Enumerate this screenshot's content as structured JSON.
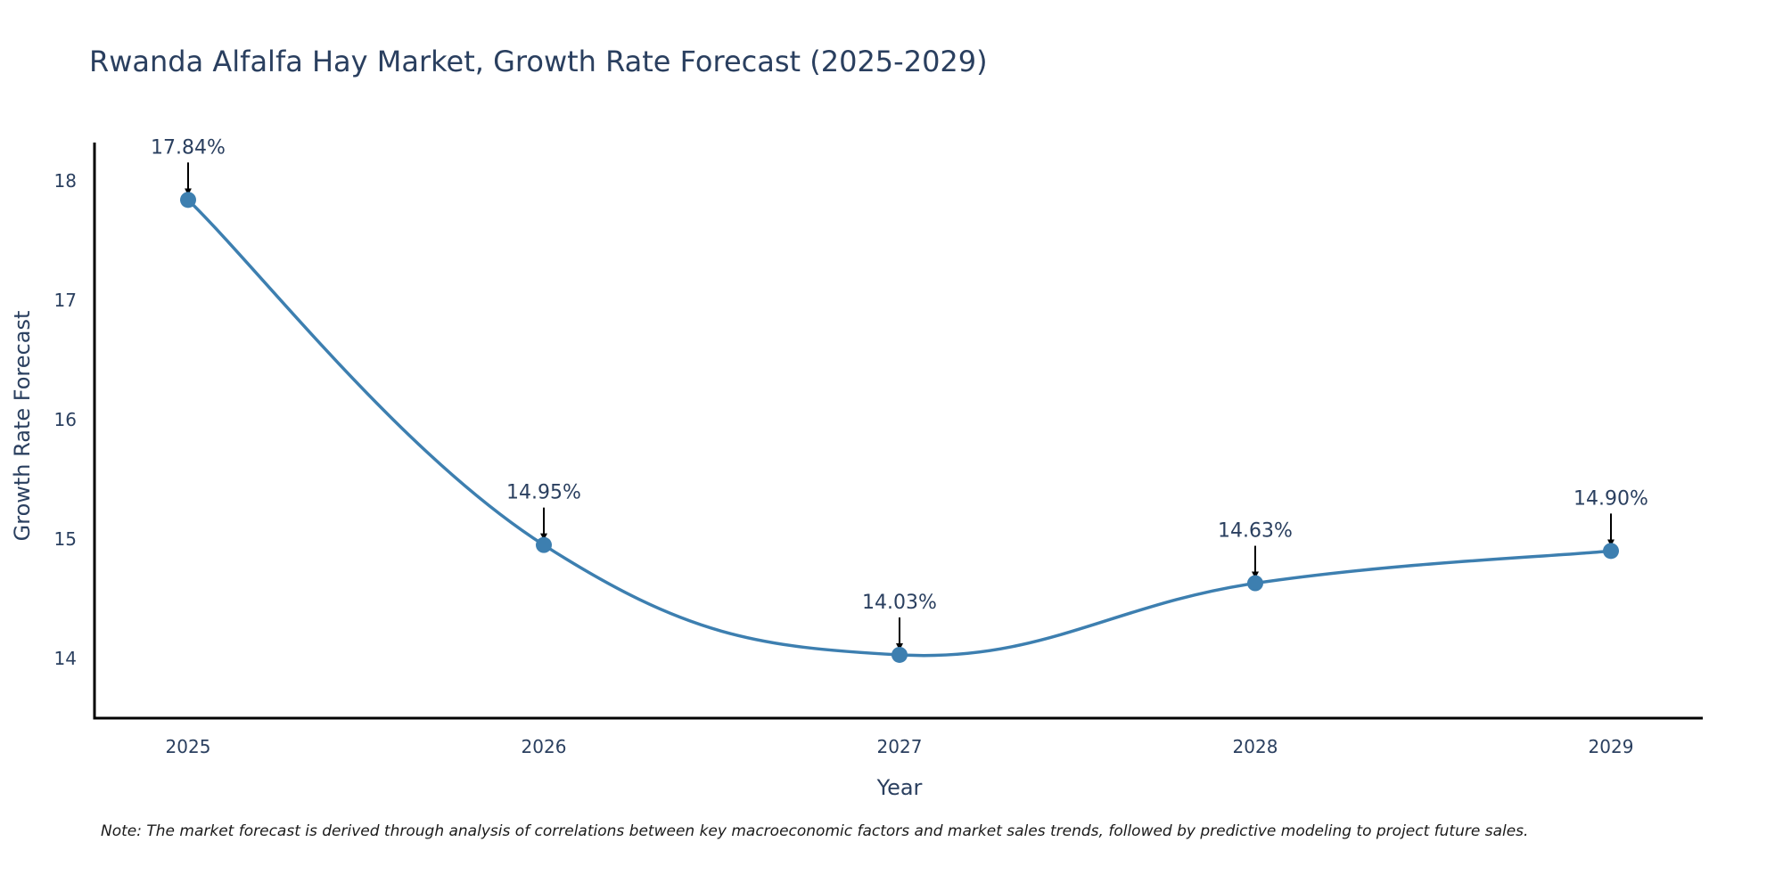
{
  "chart_data": {
    "type": "line",
    "title": "Rwanda Alfalfa Hay Market, Growth Rate Forecast (2025-2029)",
    "xlabel": "Year",
    "ylabel": "Growth Rate Forecast",
    "categories": [
      "2025",
      "2026",
      "2027",
      "2028",
      "2029"
    ],
    "values": [
      17.84,
      14.95,
      14.03,
      14.63,
      14.9
    ],
    "data_labels": [
      "17.84%",
      "14.95%",
      "14.03%",
      "14.63%",
      "14.90%"
    ],
    "ylim": [
      13.5,
      18.32
    ],
    "yticks": [
      14,
      15,
      16,
      17,
      18
    ],
    "ytick_labels": [
      "14",
      "15",
      "16",
      "17",
      "18"
    ],
    "grid": false,
    "line_shape": "spline",
    "series_color": "#3d7fb0",
    "axis_color": "#000000",
    "text_color": "#2a3f5f"
  },
  "footnote": "Note: The market forecast is derived through analysis of correlations between key macroeconomic factors and market sales trends, followed by predictive modeling to project future sales."
}
